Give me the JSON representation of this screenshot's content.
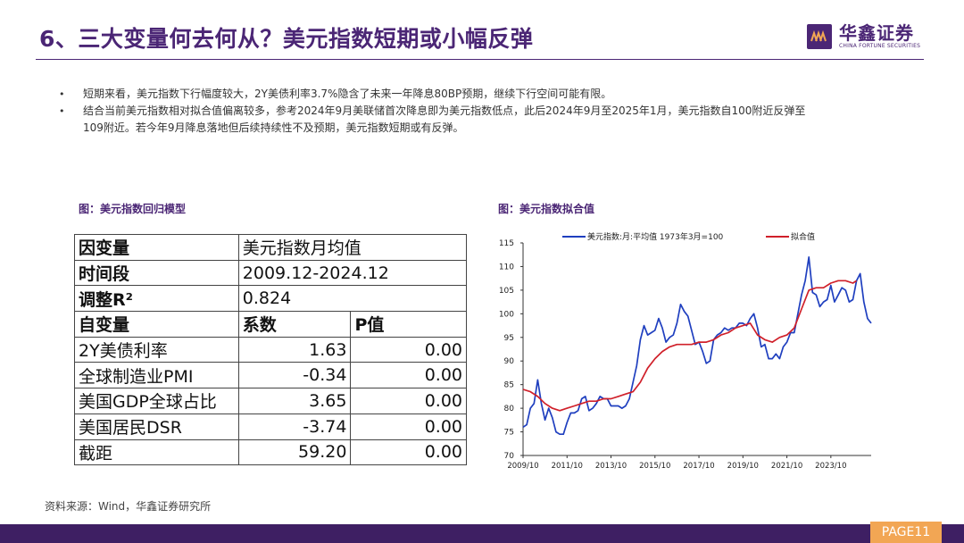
{
  "header": {
    "title": "6、三大变量何去何从？美元指数短期或小幅反弹",
    "logo_cn": "华鑫证券",
    "logo_en": "CHINA FORTUNE SECURITIES"
  },
  "bullets": [
    "短期来看，美元指数下行幅度较大，2Y美债利率3.7%隐含了未来一年降息80BP预期，继续下行空间可能有限。",
    "结合当前美元指数相对拟合值偏离较多，参考2024年9月美联储首次降息即为美元指数低点，此后2024年9月至2025年1月，美元指数自100附近反弹至",
    "109附近。若今年9月降息落地但后续持续性不及预期，美元指数短期或有反弹。"
  ],
  "bullet_glyph": "•",
  "table_caption": "图：美元指数回归模型",
  "chart_caption": "图：美元指数拟合值",
  "table": {
    "dep_label": "因变量",
    "dep_value": "美元指数月均值",
    "period_label": "时间段",
    "period_value": "2009.12-2024.12",
    "r2_label": "调整R²",
    "r2_value": "0.824",
    "indep_label": "自变量",
    "coef_label": "系数",
    "p_label": "P值",
    "rows": [
      {
        "name": "2Y美债利率",
        "coef": "1.63",
        "p": "0.00"
      },
      {
        "name": "全球制造业PMI",
        "coef": "-0.34",
        "p": "0.00"
      },
      {
        "name": "美国GDP全球占比",
        "coef": "3.65",
        "p": "0.00"
      },
      {
        "name": "美国居民DSR",
        "coef": "-3.74",
        "p": "0.00"
      },
      {
        "name": "截距",
        "coef": "59.20",
        "p": "0.00"
      }
    ]
  },
  "chart_data": {
    "type": "line",
    "x_start": "2009-10",
    "x_end": "2025-08",
    "xticks": [
      "2009/10",
      "2011/10",
      "2013/10",
      "2015/10",
      "2017/10",
      "2019/10",
      "2021/10",
      "2023/10"
    ],
    "ylim": [
      70,
      115
    ],
    "yticks": [
      70,
      75,
      80,
      85,
      90,
      95,
      100,
      105,
      110,
      115
    ],
    "legend_position": "top",
    "series": [
      {
        "name": "美元指数:月:平均值 1973年3月=100",
        "color": "#1f3fbf",
        "points": [
          [
            "2009-10",
            76
          ],
          [
            "2009-12",
            76.5
          ],
          [
            "2010-02",
            80
          ],
          [
            "2010-04",
            81
          ],
          [
            "2010-06",
            86
          ],
          [
            "2010-08",
            81
          ],
          [
            "2010-10",
            77.5
          ],
          [
            "2010-12",
            80
          ],
          [
            "2011-02",
            78
          ],
          [
            "2011-04",
            75
          ],
          [
            "2011-06",
            74.5
          ],
          [
            "2011-08",
            74.5
          ],
          [
            "2011-10",
            77
          ],
          [
            "2011-12",
            79
          ],
          [
            "2012-02",
            79
          ],
          [
            "2012-04",
            79.5
          ],
          [
            "2012-06",
            82
          ],
          [
            "2012-08",
            82.5
          ],
          [
            "2012-10",
            79.5
          ],
          [
            "2012-12",
            80
          ],
          [
            "2013-02",
            81
          ],
          [
            "2013-04",
            82.5
          ],
          [
            "2013-06",
            82
          ],
          [
            "2013-08",
            82
          ],
          [
            "2013-10",
            80.5
          ],
          [
            "2013-12",
            80.5
          ],
          [
            "2014-02",
            80.5
          ],
          [
            "2014-04",
            80
          ],
          [
            "2014-06",
            80.5
          ],
          [
            "2014-08",
            82
          ],
          [
            "2014-10",
            85.5
          ],
          [
            "2014-12",
            89
          ],
          [
            "2015-02",
            94.5
          ],
          [
            "2015-04",
            97.5
          ],
          [
            "2015-06",
            95.5
          ],
          [
            "2015-08",
            96
          ],
          [
            "2015-10",
            96.5
          ],
          [
            "2015-12",
            99
          ],
          [
            "2016-02",
            97
          ],
          [
            "2016-04",
            94
          ],
          [
            "2016-06",
            95
          ],
          [
            "2016-08",
            95.5
          ],
          [
            "2016-10",
            98
          ],
          [
            "2016-12",
            102
          ],
          [
            "2017-02",
            100.5
          ],
          [
            "2017-04",
            99.5
          ],
          [
            "2017-06",
            96.5
          ],
          [
            "2017-08",
            93.5
          ],
          [
            "2017-10",
            94
          ],
          [
            "2017-12",
            92
          ],
          [
            "2018-02",
            89.5
          ],
          [
            "2018-04",
            90
          ],
          [
            "2018-06",
            94.5
          ],
          [
            "2018-08",
            95.5
          ],
          [
            "2018-10",
            96
          ],
          [
            "2018-12",
            97
          ],
          [
            "2019-02",
            96.5
          ],
          [
            "2019-04",
            97
          ],
          [
            "2019-06",
            97
          ],
          [
            "2019-08",
            98
          ],
          [
            "2019-10",
            98
          ],
          [
            "2019-12",
            97.5
          ],
          [
            "2020-02",
            99
          ],
          [
            "2020-04",
            100
          ],
          [
            "2020-06",
            97
          ],
          [
            "2020-08",
            93
          ],
          [
            "2020-10",
            93.5
          ],
          [
            "2020-12",
            90.5
          ],
          [
            "2021-02",
            90.5
          ],
          [
            "2021-04",
            91.5
          ],
          [
            "2021-06",
            90.5
          ],
          [
            "2021-08",
            93
          ],
          [
            "2021-10",
            94
          ],
          [
            "2021-12",
            96
          ],
          [
            "2022-02",
            96
          ],
          [
            "2022-04",
            100
          ],
          [
            "2022-06",
            104
          ],
          [
            "2022-08",
            107
          ],
          [
            "2022-10",
            112
          ],
          [
            "2022-12",
            104.5
          ],
          [
            "2023-02",
            104
          ],
          [
            "2023-04",
            101.5
          ],
          [
            "2023-06",
            102.5
          ],
          [
            "2023-08",
            103
          ],
          [
            "2023-10",
            106
          ],
          [
            "2023-12",
            102.5
          ],
          [
            "2024-02",
            104
          ],
          [
            "2024-04",
            105.5
          ],
          [
            "2024-06",
            105
          ],
          [
            "2024-08",
            102.5
          ],
          [
            "2024-10",
            103
          ],
          [
            "2024-12",
            107
          ],
          [
            "2025-02",
            108.5
          ],
          [
            "2025-04",
            102.5
          ],
          [
            "2025-06",
            99
          ],
          [
            "2025-08",
            98
          ]
        ]
      },
      {
        "name": "拟合值",
        "color": "#d0202a",
        "points": [
          [
            "2009-10",
            84
          ],
          [
            "2010-02",
            83.5
          ],
          [
            "2010-06",
            82.5
          ],
          [
            "2010-10",
            81
          ],
          [
            "2011-02",
            80
          ],
          [
            "2011-06",
            79.5
          ],
          [
            "2011-10",
            80
          ],
          [
            "2012-02",
            80.5
          ],
          [
            "2012-06",
            81
          ],
          [
            "2012-10",
            81.5
          ],
          [
            "2013-02",
            81.5
          ],
          [
            "2013-06",
            82
          ],
          [
            "2013-10",
            82
          ],
          [
            "2014-02",
            82.5
          ],
          [
            "2014-06",
            83
          ],
          [
            "2014-10",
            83.5
          ],
          [
            "2015-02",
            85.5
          ],
          [
            "2015-06",
            88.5
          ],
          [
            "2015-10",
            90.5
          ],
          [
            "2016-02",
            92
          ],
          [
            "2016-06",
            93
          ],
          [
            "2016-10",
            93.5
          ],
          [
            "2017-02",
            93.5
          ],
          [
            "2017-06",
            93.5
          ],
          [
            "2017-10",
            94
          ],
          [
            "2018-02",
            94
          ],
          [
            "2018-06",
            94.5
          ],
          [
            "2018-10",
            95.5
          ],
          [
            "2019-02",
            96
          ],
          [
            "2019-06",
            97
          ],
          [
            "2019-10",
            97.5
          ],
          [
            "2020-02",
            98
          ],
          [
            "2020-06",
            95.5
          ],
          [
            "2020-10",
            94.5
          ],
          [
            "2021-02",
            94
          ],
          [
            "2021-06",
            95
          ],
          [
            "2021-10",
            95.5
          ],
          [
            "2022-02",
            97
          ],
          [
            "2022-06",
            101
          ],
          [
            "2022-10",
            105
          ],
          [
            "2023-02",
            105.5
          ],
          [
            "2023-06",
            105.5
          ],
          [
            "2023-10",
            106.5
          ],
          [
            "2024-02",
            107
          ],
          [
            "2024-06",
            107
          ],
          [
            "2024-10",
            106.5
          ],
          [
            "2024-12",
            107
          ]
        ]
      }
    ]
  },
  "source": "资料来源：Wind，华鑫证券研究所",
  "page_label": "PAGE11"
}
